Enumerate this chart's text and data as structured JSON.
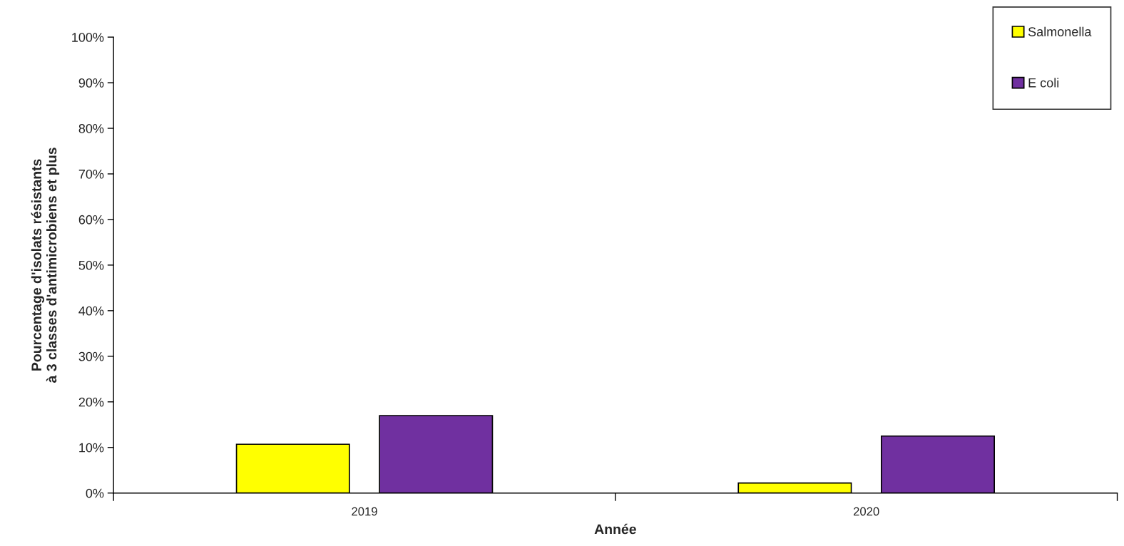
{
  "chart_data": {
    "type": "bar",
    "xlabel": "Année",
    "ylabel": "Pourcentage d'isolats résistants\nà 3 classes d'antimicrobiens et plus",
    "categories": [
      "2019",
      "2020"
    ],
    "series": [
      {
        "name": "Salmonella",
        "color": "#ffff00",
        "values": [
          10.7,
          2.2
        ]
      },
      {
        "name": "E coli",
        "color": "#7030a0",
        "values": [
          17.0,
          12.5
        ]
      }
    ],
    "ylim": [
      0,
      100
    ],
    "yticks": [
      {
        "value": 0,
        "label": "0%"
      },
      {
        "value": 10,
        "label": "10%"
      },
      {
        "value": 20,
        "label": "20%"
      },
      {
        "value": 30,
        "label": "30%"
      },
      {
        "value": 40,
        "label": "40%"
      },
      {
        "value": 50,
        "label": "50%"
      },
      {
        "value": 60,
        "label": "60%"
      },
      {
        "value": 70,
        "label": "70%"
      },
      {
        "value": 80,
        "label": "80%"
      },
      {
        "value": 90,
        "label": "90%"
      },
      {
        "value": 100,
        "label": "100%"
      }
    ],
    "grid": false,
    "legend": "top right"
  }
}
